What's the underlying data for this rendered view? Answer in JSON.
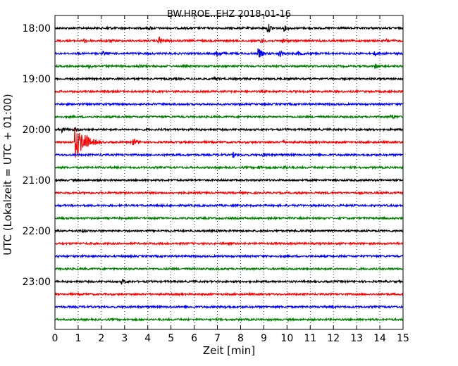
{
  "chart_data": {
    "type": "line",
    "title": "BW.HROE..EHZ 2018-01-16",
    "xlabel": "Zeit  [min]",
    "ylabel": "UTC (Lokalzeit = UTC + 01:00)",
    "xlim": [
      0,
      15
    ],
    "x_ticks": [
      "0",
      "1",
      "2",
      "3",
      "4",
      "5",
      "6",
      "7",
      "8",
      "9",
      "10",
      "11",
      "12",
      "13",
      "14",
      "15"
    ],
    "y_ticks": [
      "18:00",
      "19:00",
      "20:00",
      "21:00",
      "22:00",
      "23:00"
    ],
    "grid": "vertical dotted",
    "trace_colors": [
      "#000000",
      "#ff0000",
      "#0000ff",
      "#008000"
    ],
    "series": [
      {
        "start": "18:00",
        "events": [
          [
            2.3,
            0.25
          ],
          [
            4.1,
            0.3
          ],
          [
            9.2,
            0.9
          ],
          [
            9.9,
            0.5
          ]
        ]
      },
      {
        "start": "18:15",
        "events": [
          [
            1.3,
            0.35
          ],
          [
            2.2,
            0.35
          ],
          [
            4.5,
            0.9
          ],
          [
            8.9,
            0.4
          ],
          [
            9.8,
            0.4
          ],
          [
            14.3,
            0.3
          ]
        ]
      },
      {
        "start": "18:30",
        "events": [
          [
            2.1,
            0.3
          ],
          [
            7.0,
            0.7
          ],
          [
            8.8,
            1.0
          ],
          [
            9.7,
            0.7
          ],
          [
            10.5,
            0.4
          ],
          [
            13.8,
            0.3
          ]
        ]
      },
      {
        "start": "18:45",
        "events": [
          [
            1.5,
            0.45
          ],
          [
            3.6,
            0.35
          ],
          [
            13.8,
            0.45
          ]
        ]
      },
      {
        "start": "19:00",
        "events": [
          [
            6.9,
            0.35
          ]
        ]
      },
      {
        "start": "19:15",
        "events": []
      },
      {
        "start": "19:30",
        "events": []
      },
      {
        "start": "19:45",
        "events": [
          [
            14.5,
            0.45
          ]
        ]
      },
      {
        "start": "20:00",
        "events": [
          [
            0.35,
            0.6
          ],
          [
            0.85,
            0.4
          ]
        ]
      },
      {
        "start": "20:15",
        "events": [
          [
            0.9,
            3.5
          ],
          [
            1.3,
            1.0
          ],
          [
            3.4,
            0.8
          ],
          [
            9.8,
            0.25
          ]
        ]
      },
      {
        "start": "20:30",
        "events": [
          [
            7.7,
            0.5
          ],
          [
            9.0,
            0.3
          ]
        ]
      },
      {
        "start": "20:45",
        "events": [
          [
            8.8,
            0.3
          ],
          [
            9.9,
            0.3
          ]
        ]
      },
      {
        "start": "21:00",
        "events": []
      },
      {
        "start": "21:15",
        "events": []
      },
      {
        "start": "21:30",
        "events": []
      },
      {
        "start": "21:45",
        "events": []
      },
      {
        "start": "22:00",
        "events": [
          [
            1.2,
            0.3
          ]
        ]
      },
      {
        "start": "22:15",
        "events": []
      },
      {
        "start": "22:30",
        "events": []
      },
      {
        "start": "22:45",
        "events": []
      },
      {
        "start": "23:00",
        "events": [
          [
            2.9,
            0.5
          ]
        ]
      },
      {
        "start": "23:15",
        "events": []
      },
      {
        "start": "23:30",
        "events": [
          [
            7.3,
            0.3
          ]
        ]
      },
      {
        "start": "23:45",
        "events": []
      }
    ]
  }
}
